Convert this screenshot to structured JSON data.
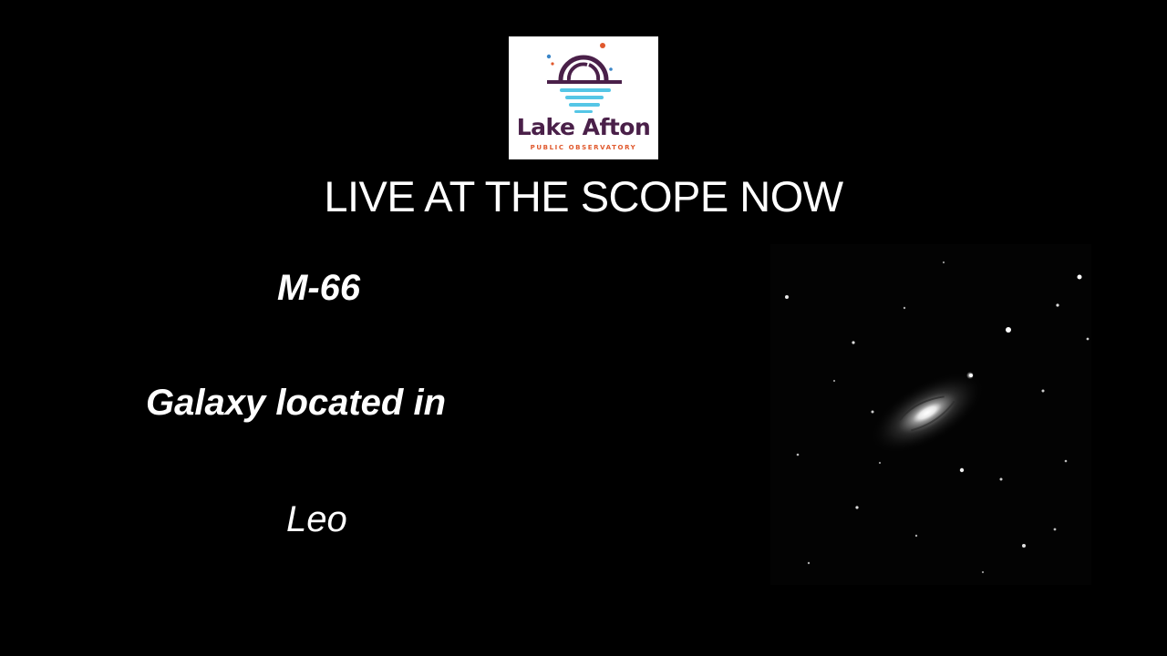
{
  "logo": {
    "name": "Lake Afton",
    "subtitle": "PUBLIC OBSERVATORY",
    "colors": {
      "dome": "#4a2049",
      "water": "#55c6e6",
      "accent_red": "#e0582c",
      "accent_blue": "#3a86c8"
    }
  },
  "headline": "LIVE AT THE SCOPE NOW",
  "target": {
    "object": "M-66",
    "description": "Galaxy located in",
    "constellation": "Leo"
  },
  "photo": {
    "subject": "galaxy-image"
  }
}
